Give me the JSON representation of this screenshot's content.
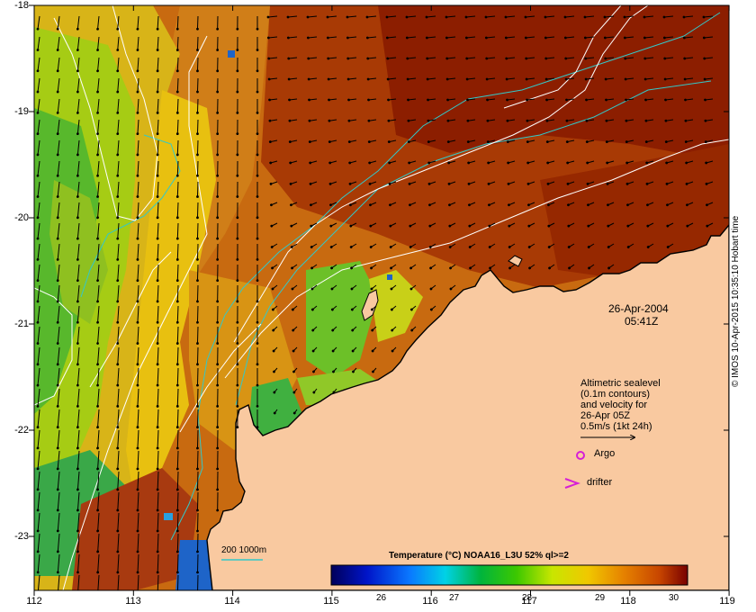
{
  "map": {
    "lat_ticks": [
      "-18",
      "-19",
      "-20",
      "-21",
      "-22",
      "-23"
    ],
    "lon_ticks": [
      "112",
      "113",
      "114",
      "115",
      "116",
      "117",
      "118",
      "119"
    ],
    "lon_range": [
      112,
      119
    ],
    "lat_range": [
      -23.5,
      -18
    ]
  },
  "date_label": {
    "date": "26-Apr-2004",
    "time": "05:41Z"
  },
  "altimetry": {
    "lines": [
      "Altimetric sealevel",
      "(0.1m contours)",
      "and velocity for",
      "26-Apr 05Z",
      "0.5m/s (1kt 24h)"
    ]
  },
  "legend": {
    "argo": "Argo",
    "drifter": "drifter",
    "isobaths": "200  1000m"
  },
  "colorbar": {
    "title": "Temperature (°C) NOAA16_L3U 52% ql>=2",
    "ticks": [
      "26",
      "27",
      "28",
      "29",
      "30"
    ],
    "range": [
      25.5,
      30.4
    ]
  },
  "credit": "© IMOS 10-Apr-2015 10:35:10 Hobart time",
  "colors": {
    "land": "#f9c9a0",
    "coast": "#000000",
    "contour": "#ffffff",
    "isobath": "#33c8c8",
    "argo": "#d61fd6",
    "drifter": "#d61fd6"
  }
}
